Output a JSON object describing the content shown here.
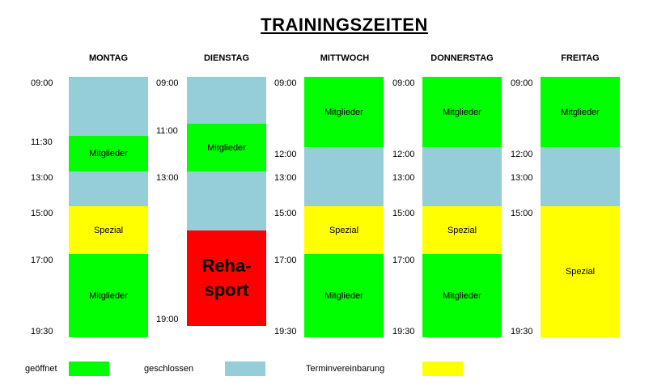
{
  "title": "TRAININGSZEITEN",
  "colors": {
    "offen": "#00ff00",
    "geschlossen": "#95cdd9",
    "termin": "#ffff00",
    "reha": "#ff0000"
  },
  "days": [
    {
      "name": "MONTAG",
      "times": [
        "09:00",
        "11:30",
        "13:00",
        "15:00",
        "17:00",
        "19:30"
      ],
      "blocks": [
        "",
        "Mitglieder",
        "",
        "Spezial",
        "Mitglieder"
      ]
    },
    {
      "name": "DIENSTAG",
      "times": [
        "09:00",
        "11:00",
        "13:00",
        "19:00"
      ],
      "blocks": [
        "",
        "Mitglieder",
        "",
        "Reha-\nsport"
      ]
    },
    {
      "name": "MITTWOCH",
      "times": [
        "09:00",
        "12:00",
        "13:00",
        "15:00",
        "17:00",
        "19:30"
      ],
      "blocks": [
        "Mitglieder",
        "",
        "Spezial",
        "Mitglieder"
      ]
    },
    {
      "name": "DONNERSTAG",
      "times": [
        "09:00",
        "12:00",
        "13:00",
        "15:00",
        "17:00",
        "19:30"
      ],
      "blocks": [
        "Mitglieder",
        "",
        "Spezial",
        "Mitglieder"
      ]
    },
    {
      "name": "FREITAG",
      "times": [
        "09:00",
        "12:00",
        "13:00",
        "15:00",
        "19:30"
      ],
      "blocks": [
        "Mitglieder",
        "",
        "Spezial"
      ]
    }
  ],
  "legend": {
    "open_label": "geöffnet",
    "closed_label": "geschlossen",
    "appointment_label": "Terminvereinbarung"
  }
}
